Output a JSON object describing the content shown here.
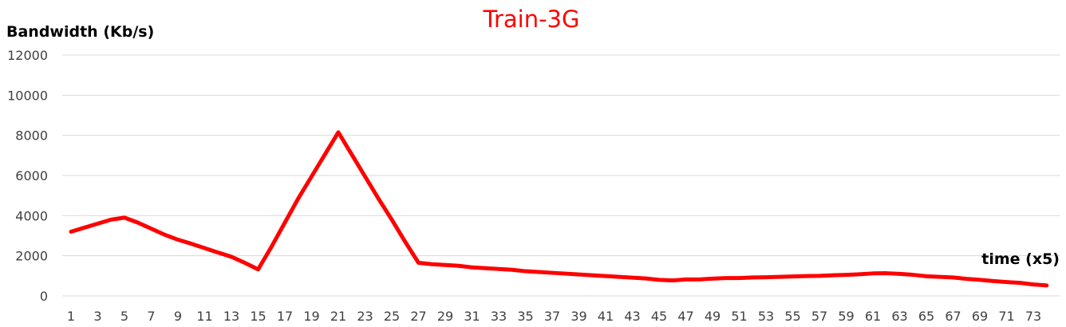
{
  "chart_data": {
    "type": "line",
    "title": "Train-3G",
    "ylabel": "Bandwidth (Kb/s)",
    "xlabel": "time (x5)",
    "ylim": [
      0,
      12000
    ],
    "yticks": [
      0,
      2000,
      4000,
      6000,
      8000,
      10000,
      12000
    ],
    "xticks": [
      1,
      3,
      5,
      7,
      9,
      11,
      13,
      15,
      17,
      19,
      21,
      23,
      25,
      27,
      29,
      31,
      33,
      35,
      37,
      39,
      41,
      43,
      45,
      47,
      49,
      51,
      53,
      55,
      57,
      59,
      61,
      63,
      65,
      67,
      69,
      71,
      73
    ],
    "grid": true,
    "line_color": "#ff0000",
    "series": [
      {
        "x": [
          1,
          2,
          3,
          4,
          5,
          6,
          7,
          8,
          9,
          10,
          11,
          12,
          13,
          14,
          15,
          16,
          17,
          18,
          19,
          20,
          21,
          22,
          23,
          24,
          25,
          26,
          27,
          28,
          29,
          30,
          31,
          32,
          33,
          34,
          35,
          36,
          37,
          38,
          39,
          40,
          41,
          42,
          43,
          44,
          45,
          46,
          47,
          48,
          49,
          50,
          51,
          52,
          53,
          54,
          55,
          56,
          57,
          58,
          59,
          60,
          61,
          62,
          63,
          64,
          65,
          66,
          67,
          68,
          69,
          70,
          71,
          72,
          73,
          74
        ],
        "values": [
          3200,
          3400,
          3600,
          3800,
          3900,
          3650,
          3350,
          3050,
          2800,
          2600,
          2380,
          2160,
          1950,
          1650,
          1320,
          2450,
          3650,
          4850,
          5950,
          7050,
          8150,
          7050,
          5950,
          4850,
          3800,
          2700,
          1650,
          1580,
          1540,
          1500,
          1420,
          1380,
          1340,
          1300,
          1230,
          1190,
          1150,
          1110,
          1070,
          1030,
          990,
          950,
          910,
          870,
          800,
          770,
          820,
          820,
          860,
          890,
          890,
          920,
          930,
          950,
          970,
          990,
          1000,
          1030,
          1050,
          1080,
          1120,
          1130,
          1100,
          1050,
          980,
          950,
          920,
          850,
          800,
          740,
          690,
          650,
          570,
          520
        ]
      }
    ]
  }
}
